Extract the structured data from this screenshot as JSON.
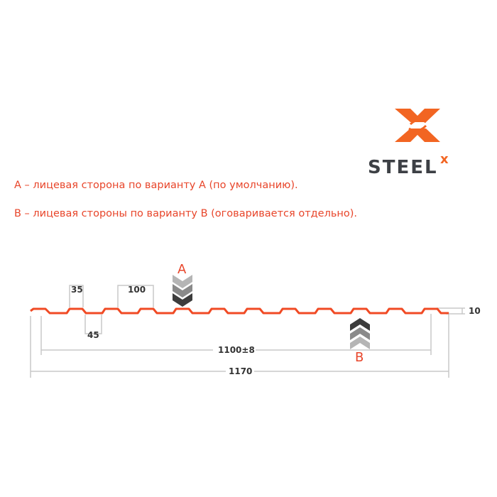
{
  "logo": {
    "text": "STEEL",
    "superscript": "x",
    "accent_color": "#f26522",
    "text_color": "#3d4045"
  },
  "notes": [
    "A – лицевая сторона по варианту A (по умолчанию).",
    "B – лицевая стороны по варианту B (оговаривается отдельно)."
  ],
  "diagram": {
    "profile_color": "#f04a24",
    "dimensions": {
      "crest_width": "35",
      "pitch": "100",
      "trough_width": "45",
      "working_width": "1100±8",
      "total_width": "1170",
      "height": "10"
    },
    "side_a_label": "A",
    "side_b_label": "B"
  }
}
